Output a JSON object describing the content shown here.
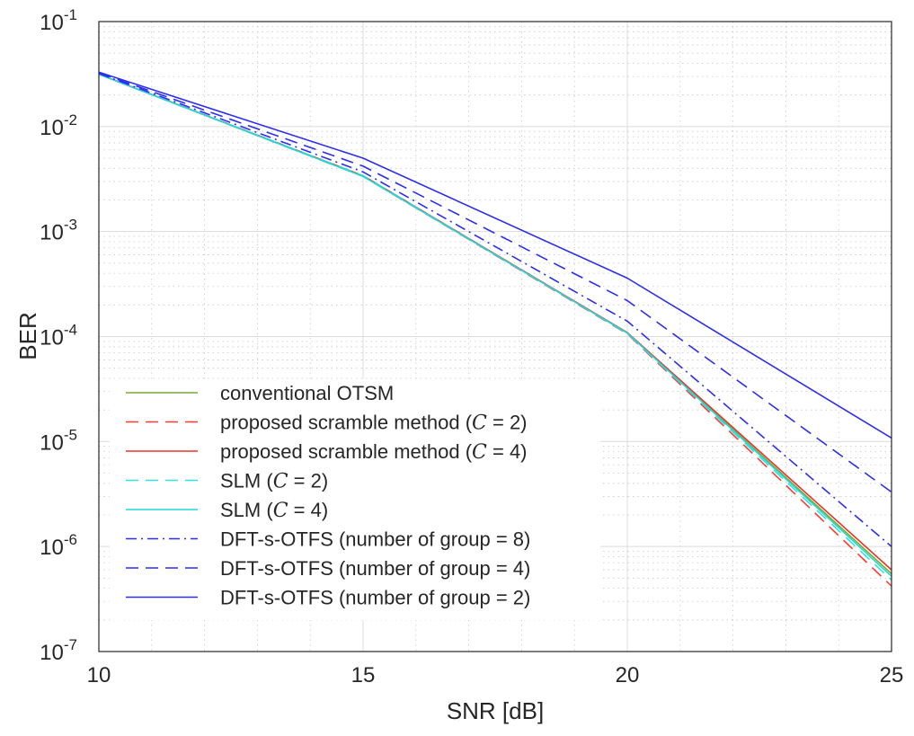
{
  "chart_data": {
    "type": "line",
    "xlabel": "SNR [dB]",
    "ylabel": "BER",
    "xlim": [
      10,
      25
    ],
    "ylim": [
      1e-07,
      0.1
    ],
    "yscale": "log",
    "grid": "major+minor",
    "legend_position": "bottom-left",
    "x_ticks": [
      "10",
      "15",
      "20",
      "25"
    ],
    "y_ticks": [
      {
        "base": "10",
        "exp": "-7"
      },
      {
        "base": "10",
        "exp": "-6"
      },
      {
        "base": "10",
        "exp": "-5"
      },
      {
        "base": "10",
        "exp": "-4"
      },
      {
        "base": "10",
        "exp": "-3"
      },
      {
        "base": "10",
        "exp": "-2"
      },
      {
        "base": "10",
        "exp": "-1"
      }
    ],
    "x": [
      10,
      15,
      20,
      25
    ],
    "series": [
      {
        "name": "conventional OTSM",
        "legend_text": "conventional OTSM",
        "legend_var": "",
        "legend_suffix": "",
        "color": "#77ac30",
        "dash": "solid",
        "values": [
          0.0315,
          0.0034,
          0.000108,
          5.5e-07
        ]
      },
      {
        "name": "proposed scramble method (C = 2)",
        "legend_text": "proposed scramble method (",
        "legend_var": "C",
        "legend_suffix": " = 2)",
        "color": "#ff3b30",
        "dash": "dashed",
        "values": [
          0.0315,
          0.00335,
          0.000106,
          4.2e-07
        ]
      },
      {
        "name": "proposed scramble method (C = 4)",
        "legend_text": "proposed scramble method (",
        "legend_var": "C",
        "legend_suffix": " = 4)",
        "color": "#e8352a",
        "dash": "solid",
        "values": [
          0.0315,
          0.0034,
          0.000109,
          6e-07
        ]
      },
      {
        "name": "SLM (C = 2)",
        "legend_text": "SLM (",
        "legend_var": "C",
        "legend_suffix": " = 2)",
        "color": "#35e0e0",
        "dash": "dashed",
        "values": [
          0.0315,
          0.0034,
          0.000107,
          4.8e-07
        ]
      },
      {
        "name": "SLM (C = 4)",
        "legend_text": "SLM (",
        "legend_var": "C",
        "legend_suffix": " = 4)",
        "color": "#22d8d8",
        "dash": "solid",
        "values": [
          0.0315,
          0.00335,
          0.000108,
          5.2e-07
        ]
      },
      {
        "name": "DFT-s-OTFS (number of group = 8)",
        "legend_text": "DFT-s-OTFS (number of group = 8)",
        "legend_var": "",
        "legend_suffix": "",
        "color": "#2d2df0",
        "dash": "dashdot",
        "values": [
          0.032,
          0.0037,
          0.00014,
          1e-06
        ]
      },
      {
        "name": "DFT-s-OTFS (number of group = 4)",
        "legend_text": "DFT-s-OTFS (number of group = 4)",
        "legend_var": "",
        "legend_suffix": "",
        "color": "#2d2df0",
        "dash": "dashed",
        "values": [
          0.0325,
          0.0042,
          0.00022,
          3.3e-06
        ]
      },
      {
        "name": "DFT-s-OTFS (number of group = 2)",
        "legend_text": "DFT-s-OTFS (number of group = 2)",
        "legend_var": "",
        "legend_suffix": "",
        "color": "#2d2df0",
        "dash": "solid",
        "values": [
          0.033,
          0.005,
          0.00036,
          1.08e-05
        ]
      }
    ]
  }
}
